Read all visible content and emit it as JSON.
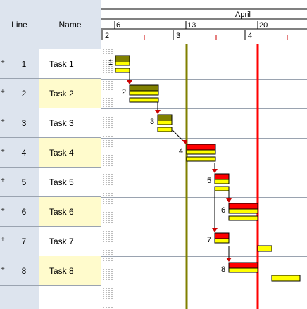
{
  "columns": {
    "line": "Line",
    "name": "Name"
  },
  "timescale": {
    "month": "April",
    "days": [
      "6",
      "13",
      "20"
    ],
    "weeks": [
      "2",
      "3",
      "4"
    ]
  },
  "tasks": [
    {
      "line": "1",
      "name": "Task 1",
      "row_bg": "white"
    },
    {
      "line": "2",
      "name": "Task 2",
      "row_bg": "yellow"
    },
    {
      "line": "3",
      "name": "Task 3",
      "row_bg": "white"
    },
    {
      "line": "4",
      "name": "Task 4",
      "row_bg": "yellow"
    },
    {
      "line": "5",
      "name": "Task 5",
      "row_bg": "white"
    },
    {
      "line": "6",
      "name": "Task 6",
      "row_bg": "yellow"
    },
    {
      "line": "7",
      "name": "Task 7",
      "row_bg": "white"
    },
    {
      "line": "8",
      "name": "Task 8",
      "row_bg": "yellow"
    }
  ],
  "bar_labels": [
    "1",
    "2",
    "3",
    "4",
    "5",
    "6",
    "7",
    "8"
  ],
  "colors": {
    "header_bg": "#dde4ee",
    "name_alt_bg": "#fffbcc",
    "bar_yellow": "#ffff00",
    "bar_olive": "#808000",
    "bar_red": "#ff0000",
    "status_line": "#808000",
    "today_line": "#ff0000"
  }
}
